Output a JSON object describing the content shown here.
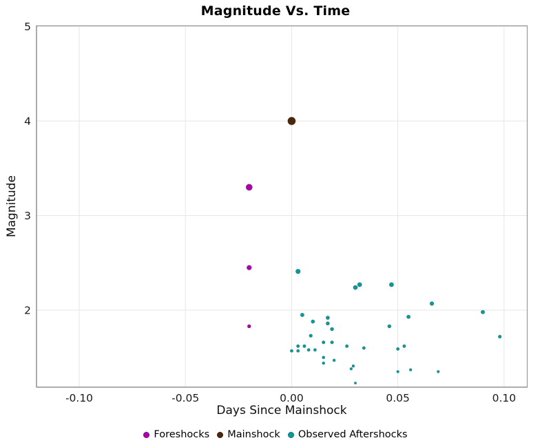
{
  "chart": {
    "title": "Magnitude Vs. Time",
    "xlabel": "Days Since Mainshock",
    "ylabel": "Magnitude"
  },
  "legend": {
    "items": [
      {
        "label": "Foreshocks",
        "color": "#a903ad"
      },
      {
        "label": "Mainshock",
        "color": "#4a260b"
      },
      {
        "label": "Observed Aftershocks",
        "color": "#0f9898"
      }
    ]
  },
  "chart_data": {
    "type": "scatter",
    "title": "Magnitude Vs. Time",
    "xlabel": "Days Since Mainshock",
    "ylabel": "Magnitude",
    "xlim": [
      -0.12,
      0.111
    ],
    "ylim": [
      1.19,
      5.0
    ],
    "x_ticks": [
      -0.1,
      -0.05,
      0.0,
      0.05,
      0.1
    ],
    "x_tick_labels": [
      "-0.10",
      "-0.05",
      "0.00",
      "0.05",
      "0.10"
    ],
    "y_ticks": [
      2,
      3,
      4,
      5
    ],
    "y_tick_labels": [
      "2",
      "3",
      "4",
      "5"
    ],
    "grid": true,
    "grid_color": "#e6e6e6",
    "frame_color": "#9a9a9a",
    "legend_position": "bottom-center",
    "marker_size_rule": "radius_px = 1.42 * magnitude",
    "series": [
      {
        "name": "Foreshocks",
        "color": "#a903ad",
        "points": [
          [
            -0.02,
            3.3
          ],
          [
            -0.02,
            2.45
          ],
          [
            -0.02,
            1.83
          ]
        ]
      },
      {
        "name": "Mainshock",
        "color": "#4a260b",
        "points": [
          [
            0.0,
            4.0
          ]
        ]
      },
      {
        "name": "Observed Aftershocks",
        "color": "#0f9898",
        "points": [
          [
            0.003,
            2.41
          ],
          [
            0.03,
            2.24
          ],
          [
            0.032,
            2.27
          ],
          [
            0.005,
            1.95
          ],
          [
            0.01,
            1.88
          ],
          [
            0.017,
            1.92
          ],
          [
            0.017,
            1.86
          ],
          [
            0.019,
            1.8
          ],
          [
            0.009,
            1.73
          ],
          [
            0.015,
            1.66
          ],
          [
            0.019,
            1.66
          ],
          [
            0.003,
            1.62
          ],
          [
            0.006,
            1.62
          ],
          [
            0.026,
            1.62
          ],
          [
            0.034,
            1.6
          ],
          [
            0.0,
            1.57
          ],
          [
            0.003,
            1.57
          ],
          [
            0.008,
            1.58
          ],
          [
            0.011,
            1.58
          ],
          [
            0.015,
            1.5
          ],
          [
            0.02,
            1.47
          ],
          [
            0.015,
            1.44
          ],
          [
            0.029,
            1.41
          ],
          [
            0.028,
            1.38
          ],
          [
            0.03,
            1.23
          ],
          [
            0.047,
            2.27
          ],
          [
            0.066,
            2.07
          ],
          [
            0.09,
            1.98
          ],
          [
            0.055,
            1.93
          ],
          [
            0.046,
            1.83
          ],
          [
            0.098,
            1.72
          ],
          [
            0.053,
            1.62
          ],
          [
            0.05,
            1.59
          ],
          [
            0.05,
            1.35
          ],
          [
            0.056,
            1.37
          ],
          [
            0.069,
            1.35
          ]
        ]
      }
    ]
  }
}
